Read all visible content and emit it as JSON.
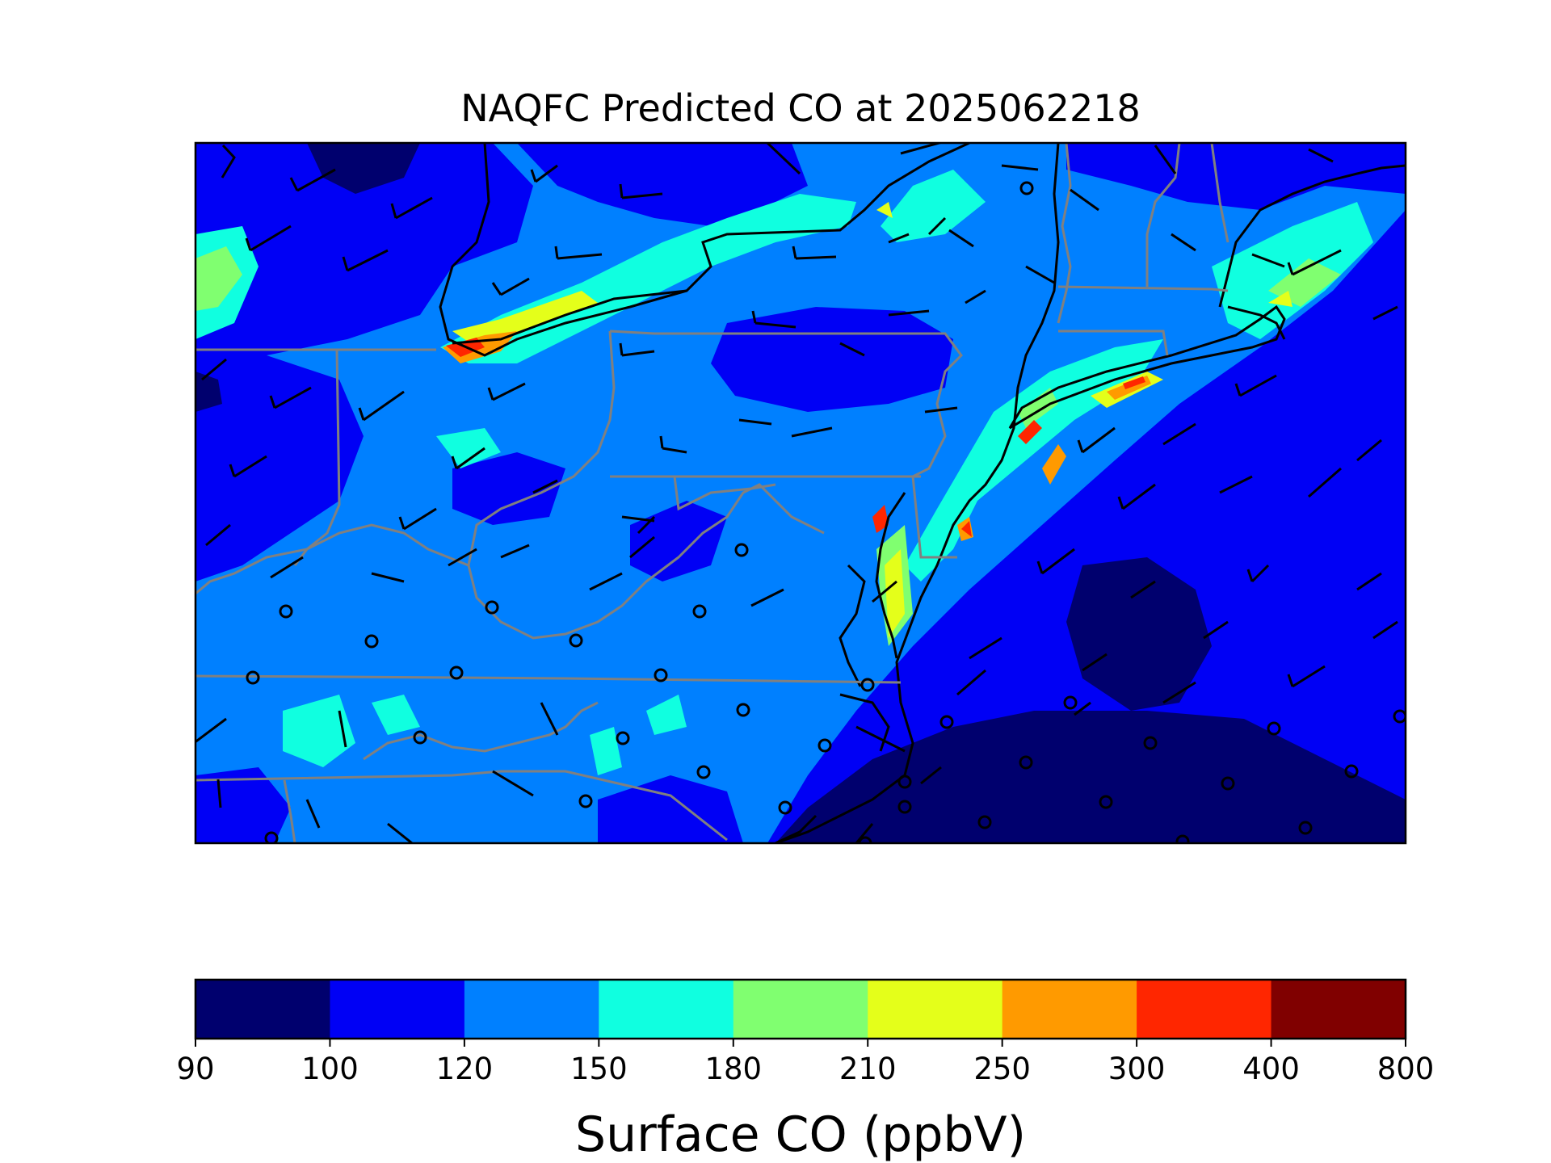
{
  "title": "NAQFC Predicted CO at 2025062218",
  "colorbar": {
    "label": "Surface CO (ppbV)",
    "ticks": [
      "90",
      "100",
      "120",
      "150",
      "180",
      "210",
      "250",
      "300",
      "400",
      "800"
    ],
    "colors": [
      "#00006e",
      "#0000f5",
      "#0080ff",
      "#10ffe0",
      "#80ff70",
      "#e4ff1a",
      "#ff9a00",
      "#ff2600",
      "#800000"
    ]
  },
  "map": {
    "style": {
      "coastline_color": "#000000",
      "border_color": "#808080",
      "wind_barb_color": "#000000"
    }
  }
}
